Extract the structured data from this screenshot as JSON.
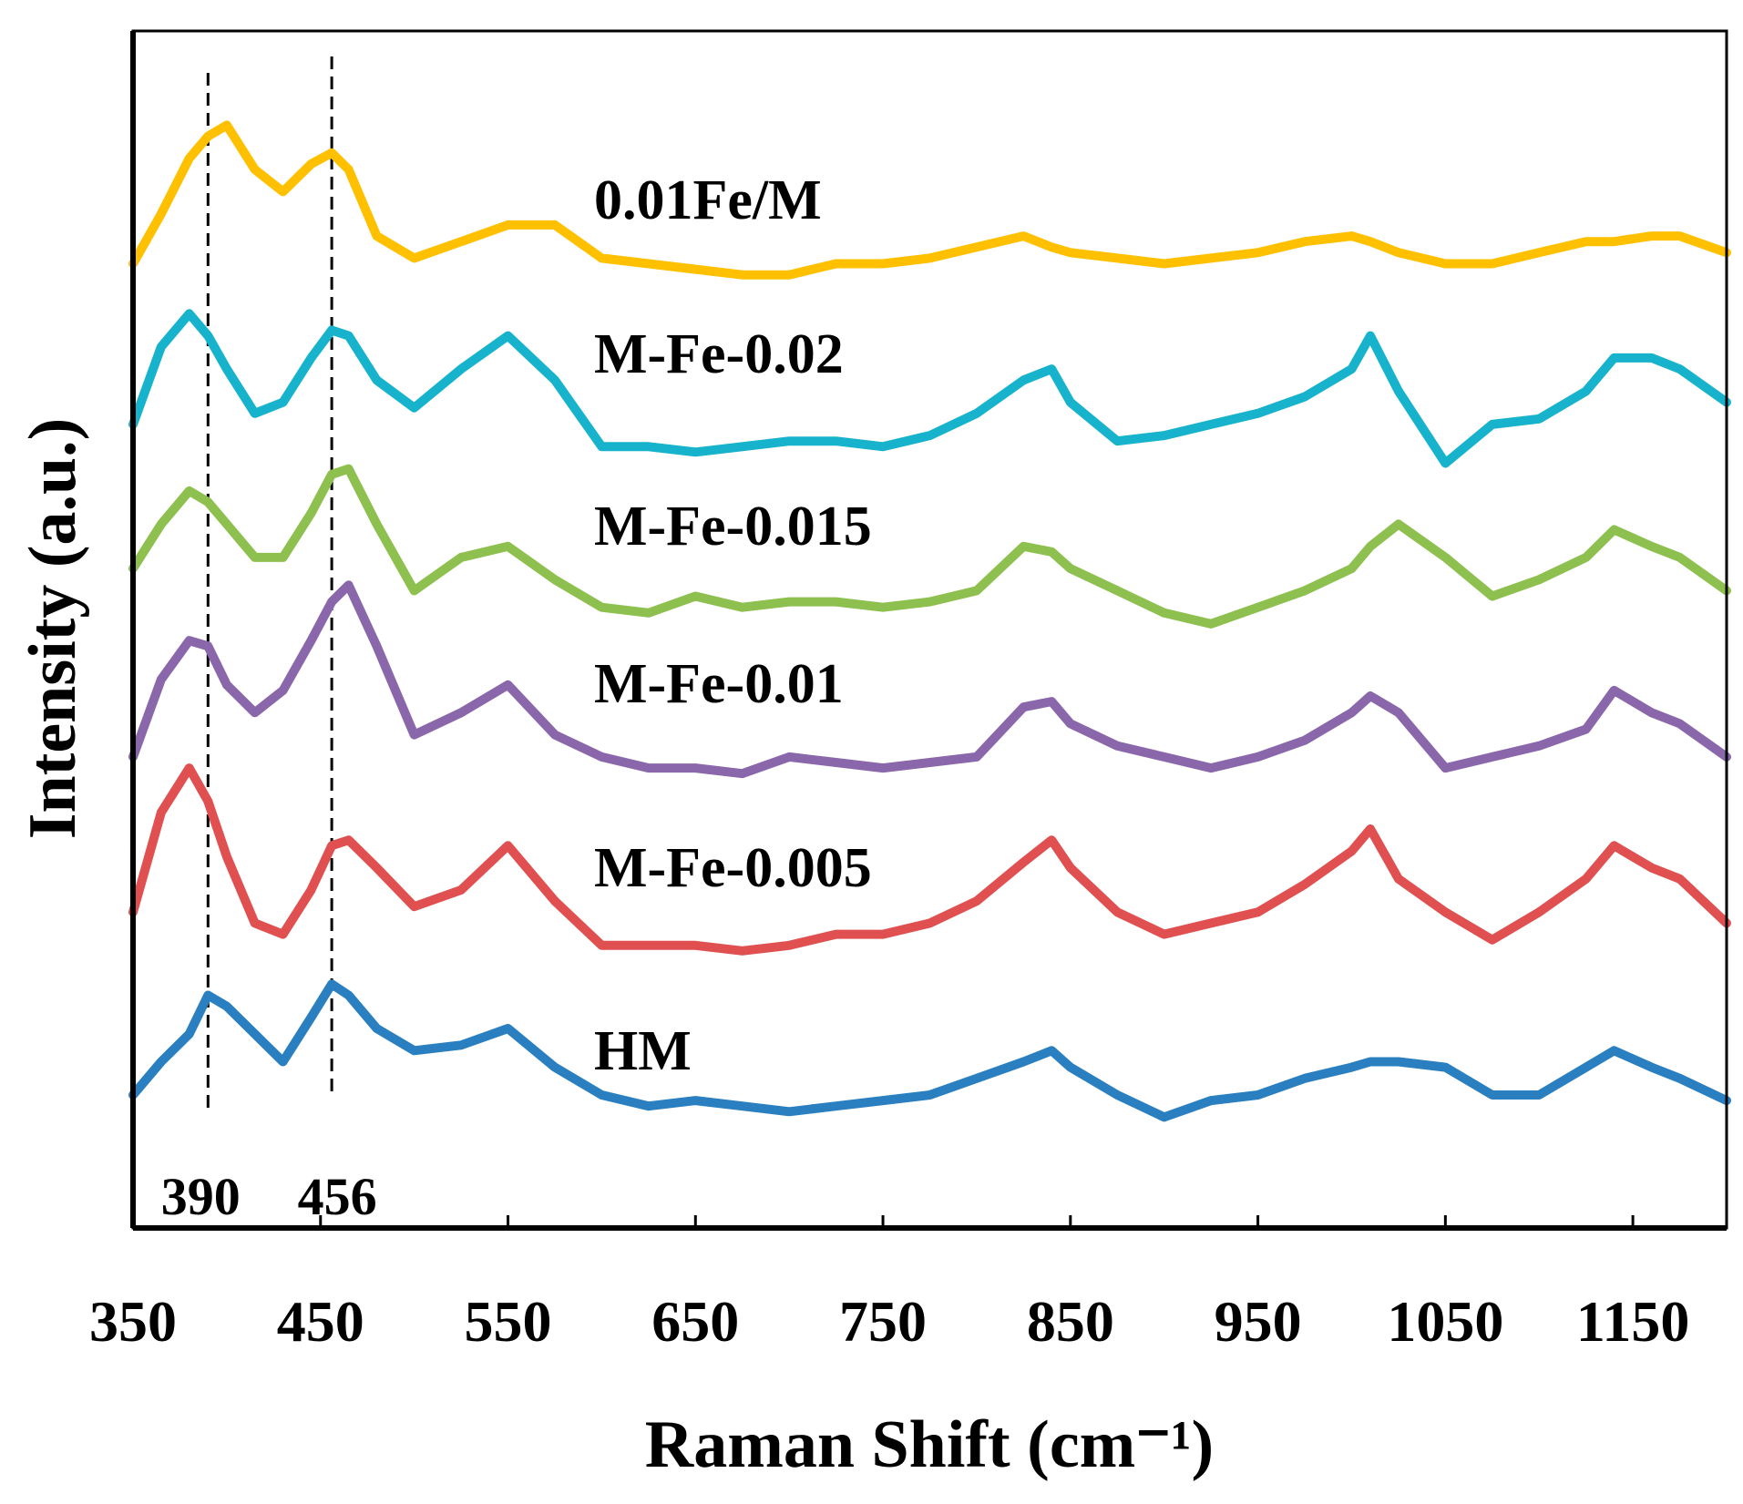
{
  "chart_data": {
    "type": "line",
    "x_label": "Raman Shift (cm⁻¹)",
    "y_label": "Intensity (a.u.)",
    "xlim": [
      350,
      1200
    ],
    "xticks": [
      350,
      450,
      550,
      650,
      750,
      850,
      950,
      1050,
      1150
    ],
    "ylim": [
      0,
      1080
    ],
    "reference_lines": [
      390,
      456
    ],
    "x": [
      350,
      365,
      380,
      390,
      400,
      415,
      430,
      445,
      456,
      465,
      480,
      500,
      525,
      550,
      575,
      600,
      625,
      650,
      675,
      700,
      725,
      750,
      775,
      800,
      825,
      840,
      850,
      875,
      900,
      925,
      950,
      975,
      1000,
      1010,
      1025,
      1050,
      1075,
      1100,
      1125,
      1140,
      1160,
      1175,
      1200
    ],
    "series": [
      {
        "name": "0.01Fe/M",
        "color": "#FFC000",
        "values": [
          870,
          915,
          965,
          985,
          995,
          955,
          935,
          960,
          970,
          955,
          895,
          875,
          890,
          905,
          905,
          875,
          870,
          865,
          860,
          860,
          870,
          870,
          875,
          885,
          895,
          885,
          880,
          875,
          870,
          875,
          880,
          890,
          895,
          890,
          880,
          870,
          870,
          880,
          890,
          890,
          895,
          895,
          880
        ]
      },
      {
        "name": "M-Fe-0.02",
        "color": "#17B3CC",
        "values": [
          725,
          795,
          825,
          805,
          775,
          735,
          745,
          785,
          810,
          805,
          765,
          740,
          775,
          805,
          765,
          705,
          705,
          700,
          705,
          710,
          710,
          705,
          715,
          735,
          765,
          775,
          745,
          710,
          715,
          725,
          735,
          750,
          775,
          805,
          755,
          690,
          725,
          730,
          755,
          785,
          785,
          775,
          745
        ]
      },
      {
        "name": "M-Fe-0.015",
        "color": "#8DC04F",
        "values": [
          595,
          635,
          665,
          655,
          635,
          605,
          605,
          645,
          680,
          685,
          635,
          575,
          605,
          615,
          585,
          560,
          555,
          570,
          560,
          565,
          565,
          560,
          565,
          575,
          615,
          610,
          595,
          575,
          555,
          545,
          560,
          575,
          595,
          615,
          635,
          605,
          570,
          585,
          605,
          630,
          615,
          605,
          575
        ]
      },
      {
        "name": "M-Fe-0.01",
        "color": "#8A66AA",
        "values": [
          425,
          495,
          530,
          525,
          490,
          465,
          485,
          530,
          565,
          580,
          525,
          445,
          465,
          490,
          445,
          425,
          415,
          415,
          410,
          425,
          420,
          415,
          420,
          425,
          470,
          475,
          455,
          435,
          425,
          415,
          425,
          440,
          465,
          480,
          465,
          415,
          425,
          435,
          450,
          485,
          465,
          455,
          425
        ]
      },
      {
        "name": "M-Fe-0.005",
        "color": "#E05050",
        "values": [
          285,
          375,
          415,
          385,
          335,
          275,
          265,
          305,
          345,
          350,
          325,
          290,
          305,
          345,
          295,
          255,
          255,
          255,
          250,
          255,
          265,
          265,
          275,
          295,
          330,
          350,
          325,
          285,
          265,
          275,
          285,
          310,
          340,
          360,
          315,
          285,
          260,
          285,
          315,
          345,
          325,
          315,
          275
        ]
      },
      {
        "name": "HM",
        "color": "#2A7FC0",
        "values": [
          120,
          150,
          175,
          210,
          200,
          175,
          150,
          190,
          220,
          210,
          180,
          160,
          165,
          180,
          145,
          120,
          110,
          115,
          110,
          105,
          110,
          115,
          120,
          135,
          150,
          160,
          145,
          120,
          100,
          115,
          120,
          135,
          145,
          150,
          150,
          145,
          120,
          120,
          145,
          160,
          145,
          135,
          115
        ]
      }
    ]
  }
}
